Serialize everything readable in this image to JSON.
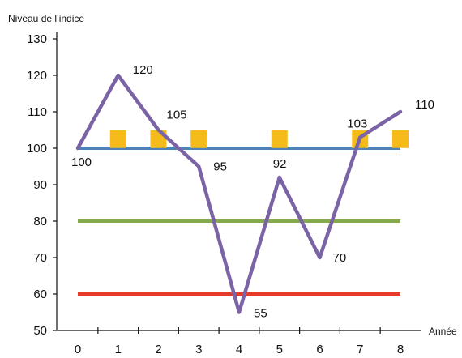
{
  "chart_data": {
    "type": "line",
    "title": "",
    "xlabel": "Année",
    "ylabel": "Niveau de l’indice",
    "x": [
      0,
      1,
      2,
      3,
      4,
      5,
      6,
      7,
      8
    ],
    "xlim": [
      0,
      8
    ],
    "ylim": [
      50,
      130
    ],
    "yticks": [
      50,
      60,
      70,
      80,
      90,
      100,
      110,
      120,
      130
    ],
    "grid": false,
    "legend": "none",
    "series": [
      {
        "kind": "line",
        "color": "#7b64a6",
        "values": [
          100,
          120,
          105,
          95,
          55,
          92,
          70,
          103,
          110
        ],
        "labels": [
          "100",
          "120",
          "105",
          "95",
          "55",
          "92",
          "70",
          "103",
          "110"
        ]
      },
      {
        "kind": "hline",
        "color": "#4f83b6",
        "y": 100
      },
      {
        "kind": "hline",
        "color": "#85aa4c",
        "y": 80
      },
      {
        "kind": "hline",
        "color": "#e63b29",
        "y": 60
      },
      {
        "kind": "markers",
        "color": "#f5bb1a",
        "y": 102.5,
        "x": [
          1,
          2,
          3,
          5,
          7,
          8
        ]
      }
    ]
  }
}
